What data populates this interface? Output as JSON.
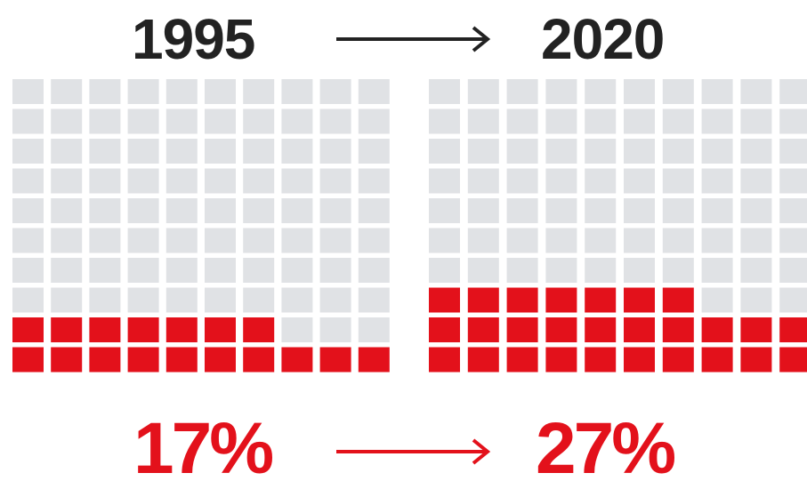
{
  "colors": {
    "empty": "#e0e2e5",
    "filled": "#e3111b",
    "year_text": "#222222",
    "arrow_top": "#222222"
  },
  "chart_data": [
    {
      "type": "waffle",
      "label": "1995",
      "value_label": "17%",
      "value": 17,
      "total": 100,
      "rows": 10,
      "cols": 10
    },
    {
      "type": "waffle",
      "label": "2020",
      "value_label": "27%",
      "value": 27,
      "total": 100,
      "rows": 10,
      "cols": 10
    }
  ]
}
